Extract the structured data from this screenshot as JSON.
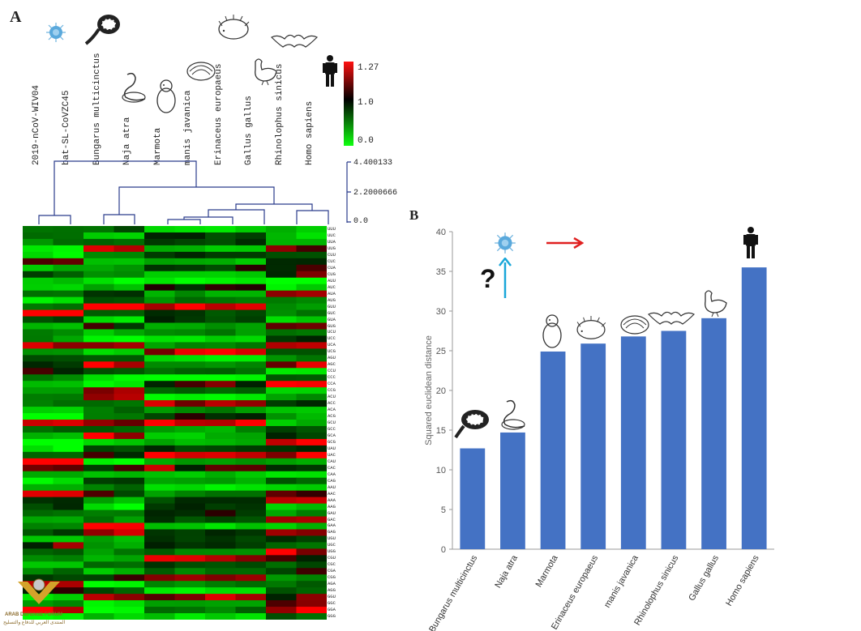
{
  "panel_a_letter": "A",
  "panel_b_letter": "B",
  "chart_data": [
    {
      "type": "heatmap",
      "columns": [
        "2019-nCoV-WIV04",
        "bat-SL-CoVZC45",
        "Bungarus multicinctus",
        "Naja atra",
        "Marmota",
        "manis javanica",
        "Erinaceus europaeus",
        "Gallus gallus",
        "Rhinolophus sinicus",
        "Homo sapiens"
      ],
      "rows": [
        "UUU",
        "UUC",
        "UUA",
        "UUG",
        "CUU",
        "CUC",
        "CUA",
        "CUG",
        "AUU",
        "AUC",
        "AUA",
        "AUG",
        "GUU",
        "GUC",
        "GUA",
        "GUG",
        "UCU",
        "UCC",
        "UCA",
        "UCG",
        "AGU",
        "AGC",
        "CCU",
        "CCC",
        "CCA",
        "CCG",
        "ACU",
        "ACC",
        "ACA",
        "ACG",
        "GCU",
        "GCC",
        "GCA",
        "GCG",
        "UAU",
        "UAC",
        "CAU",
        "CAC",
        "CAA",
        "CAG",
        "AAU",
        "AAC",
        "AAA",
        "AAG",
        "GAU",
        "GAC",
        "GAA",
        "GAG",
        "UGU",
        "UGC",
        "UGG",
        "CGU",
        "CGC",
        "CGA",
        "CGG",
        "AGA",
        "AGG",
        "GGU",
        "GGC",
        "GGA",
        "GGG"
      ],
      "color_scale": {
        "min": 0.0,
        "mid": 1.0,
        "max": 1.27,
        "min_color": "#00ff00",
        "mid_color": "#000000",
        "max_color": "#ff0000"
      },
      "color_scale_ticks": [
        "1.27",
        "1.0",
        "0.0"
      ],
      "dendrogram_scale_ticks": [
        "4.400133",
        "2.2000666",
        "0.0"
      ]
    },
    {
      "type": "bar",
      "categories": [
        "Bungarus multicinctus",
        "Naja atra",
        "Marmota",
        "Erinaceus europaeus",
        "manis javanica",
        "Rhinolophus sinicus",
        "Gallus gallus",
        "Homo sapiens"
      ],
      "values": [
        12.7,
        14.7,
        24.9,
        25.9,
        26.8,
        27.5,
        29.1,
        35.5
      ],
      "ylabel": "Squared euclidean distance",
      "ylim": [
        0,
        40
      ],
      "yticks": [
        0,
        5,
        10,
        15,
        20,
        25,
        30,
        35,
        40
      ],
      "bar_color": "#4472c4",
      "question_mark": "?"
    }
  ],
  "watermark": {
    "line1": "ARAB DEFENSE FORUM",
    "line2": "المنتدى العربي للدفاع والتسليح"
  }
}
